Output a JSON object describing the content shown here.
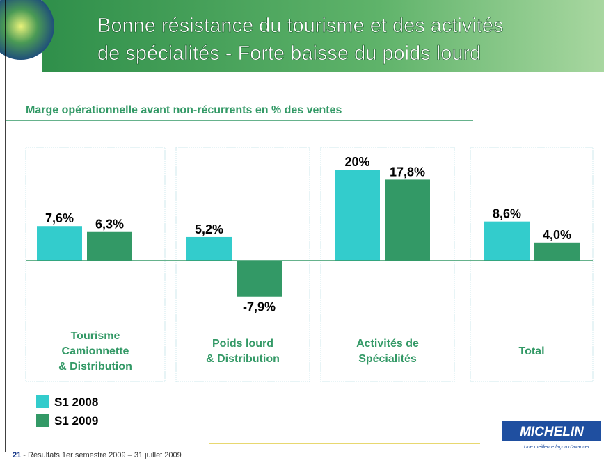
{
  "slide": {
    "title": [
      "Bonne résistance du tourisme et des activités",
      "de spécialités - Forte baisse du poids lourd"
    ],
    "page_number": "21",
    "footer": " - Résultats 1er semestre  2009 – 31 juillet 2009",
    "logo": "MICHELIN",
    "tagline": "Une meilleure façon d'avancer"
  },
  "chart_data": {
    "type": "bar",
    "title": "Marge opérationnelle avant non-récurrents en % des ventes",
    "categories": [
      [
        "Tourisme",
        "Camionnette",
        "& Distribution"
      ],
      [
        "Poids lourd",
        "& Distribution"
      ],
      [
        "Activités de",
        "Spécialités"
      ],
      [
        "Total"
      ]
    ],
    "series": [
      {
        "name": "S1 2008",
        "color": "#33cccc",
        "values": [
          7.6,
          5.2,
          20,
          8.6
        ],
        "value_labels": [
          "7,6%",
          "5,2%",
          "20%",
          "8,6%"
        ]
      },
      {
        "name": "S1 2009",
        "color": "#339966",
        "values": [
          6.3,
          -7.9,
          17.8,
          4.0
        ],
        "value_labels": [
          "6,3%",
          "-7,9%",
          "17,8%",
          "4,0%"
        ]
      }
    ]
  }
}
